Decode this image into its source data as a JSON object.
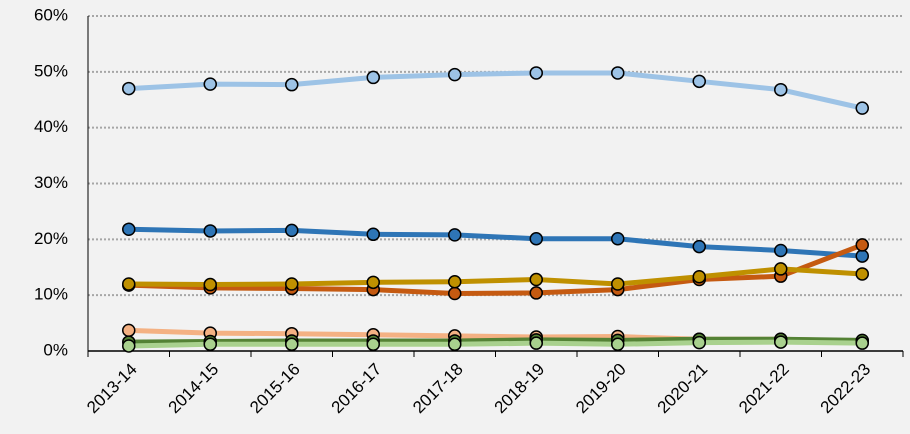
{
  "chart_data": {
    "type": "line",
    "categories": [
      "2013-14",
      "2014-15",
      "2015-16",
      "2016-17",
      "2017-18",
      "2018-19",
      "2019-20",
      "2020-21",
      "2021-22",
      "2022-23"
    ],
    "series": [
      {
        "color": "#9dc3e6",
        "values": [
          47,
          47.8,
          47.7,
          49,
          49.5,
          49.8,
          49.8,
          48.3,
          46.8,
          43.5
        ]
      },
      {
        "color": "#2e75b6",
        "values": [
          21.8,
          21.5,
          21.6,
          20.9,
          20.8,
          20.1,
          20.1,
          18.7,
          18,
          17
        ]
      },
      {
        "color": "#c55a11",
        "values": [
          11.8,
          11.3,
          11.2,
          11,
          10.3,
          10.4,
          11,
          12.8,
          13.4,
          19
        ]
      },
      {
        "color": "#bf9000",
        "values": [
          12,
          11.9,
          12,
          12.3,
          12.4,
          12.8,
          12,
          13.3,
          14.7,
          13.8
        ]
      },
      {
        "color": "#f4b183",
        "values": [
          3.7,
          3.2,
          3.1,
          2.9,
          2.7,
          2.5,
          2.6,
          2.1,
          2.1,
          1.8
        ]
      },
      {
        "color": "#548235",
        "values": [
          1.6,
          1.7,
          1.8,
          1.8,
          1.8,
          2,
          1.9,
          2.1,
          2.1,
          1.9
        ]
      },
      {
        "color": "#a9d18e",
        "values": [
          0.9,
          1.2,
          1.2,
          1.2,
          1.2,
          1.4,
          1.2,
          1.5,
          1.6,
          1.4
        ]
      }
    ],
    "ylim": [
      0,
      60
    ],
    "yticks": [
      {
        "value": 0,
        "label": "0%"
      },
      {
        "value": 10,
        "label": "10%"
      },
      {
        "value": 20,
        "label": "20%"
      },
      {
        "value": 30,
        "label": "30%"
      },
      {
        "value": 40,
        "label": "40%"
      },
      {
        "value": 50,
        "label": "50%"
      },
      {
        "value": 60,
        "label": "60%"
      }
    ],
    "grid": true
  }
}
